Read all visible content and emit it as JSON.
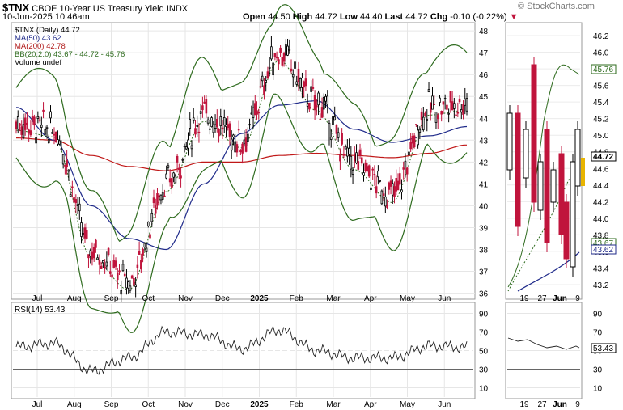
{
  "header": {
    "symbol": "$TNX",
    "name": "CBOE 10-Year US Treasury Yield",
    "exchange": "INDX",
    "date": "10-Jun-2025 10:46am",
    "watermark": "© StockCharts.com",
    "ohlc": {
      "open_label": "Open",
      "open": "44.50",
      "high_label": "High",
      "high": "44.72",
      "low_label": "Low",
      "low": "44.40",
      "last_label": "Last",
      "last": "44.72",
      "chg_label": "Chg",
      "chg": "-0.10 (-0.22%)"
    }
  },
  "legend": [
    {
      "text": "$TNX (Daily) 44.72",
      "color": "#000000"
    },
    {
      "text": "MA(50) 43.62",
      "color": "#1f2a8a"
    },
    {
      "text": "MA(200) 42.78",
      "color": "#b01818"
    },
    {
      "text": "BB(20,2.0) 43.67 - 44.72 - 45.76",
      "color": "#2e6b1e"
    },
    {
      "text": "Volume undef",
      "color": "#000000"
    }
  ],
  "rsi_label": "RSI(14) 53.43",
  "colors": {
    "up": "#000000",
    "down": "#c0143c",
    "ma50": "#1f2a8a",
    "ma200": "#c01818",
    "bb": "#2e6b1e",
    "last_tag": "#e8b400"
  },
  "price_axis": {
    "ticks": [
      "48",
      "47",
      "46",
      "45",
      "44",
      "43",
      "42",
      "41",
      "40",
      "39",
      "38",
      "37",
      "36"
    ]
  },
  "zoom_axis": {
    "ticks": [
      "46.2",
      "46.0",
      "45.8",
      "45.6",
      "45.4",
      "45.2",
      "45.0",
      "44.8",
      "44.6",
      "44.4",
      "44.2",
      "44.0",
      "43.8",
      "43.6",
      "43.4",
      "43.2"
    ]
  },
  "zoom_tags": {
    "bb_upper": "45.76",
    "last": "44.72",
    "bb_lower": "43.67",
    "ma50": "43.62"
  },
  "rsi_axis": {
    "ticks": [
      "90",
      "70",
      "50",
      "30",
      "10"
    ]
  },
  "rsi_zoom_tag": "53.43",
  "x_labels": [
    "Jul",
    "Aug",
    "Sep",
    "Oct",
    "Nov",
    "Dec",
    "2025",
    "Feb",
    "Mar",
    "Apr",
    "May",
    "Jun"
  ],
  "zoom_x_labels": [
    "19",
    "27",
    "Jun",
    "9"
  ],
  "chart_data": {
    "type": "line",
    "title": "$TNX CBOE 10-Year US Treasury Yield INDX",
    "xlabel": "",
    "ylabel": "",
    "x": [
      "Jun-24",
      "Jul-24",
      "Aug-24",
      "Sep-24",
      "Oct-24",
      "Nov-24",
      "Dec-24",
      "Jan-25",
      "Feb-25",
      "Mar-25",
      "Apr-25",
      "May-25",
      "Jun-25"
    ],
    "ylim": [
      35.8,
      48.3
    ],
    "series": [
      {
        "name": "$TNX (Daily)",
        "values": [
          43.8,
          43.5,
          38.0,
          36.5,
          41.0,
          44.2,
          43.0,
          47.0,
          44.7,
          42.0,
          40.5,
          44.5,
          44.72
        ]
      },
      {
        "name": "MA(50)",
        "values": [
          44.5,
          43.0,
          40.0,
          38.5,
          38.0,
          41.0,
          43.3,
          44.6,
          44.8,
          43.5,
          42.9,
          43.2,
          43.62
        ]
      },
      {
        "name": "MA(200)",
        "values": [
          43.1,
          43.0,
          42.3,
          41.8,
          41.6,
          42.0,
          42.0,
          42.3,
          42.4,
          42.3,
          42.2,
          42.4,
          42.78
        ]
      }
    ],
    "rsi": {
      "name": "RSI(14)",
      "ylim": [
        0,
        100
      ],
      "values": [
        54,
        58,
        28,
        42,
        70,
        67,
        52,
        72,
        50,
        42,
        42,
        55,
        53.43
      ]
    }
  }
}
